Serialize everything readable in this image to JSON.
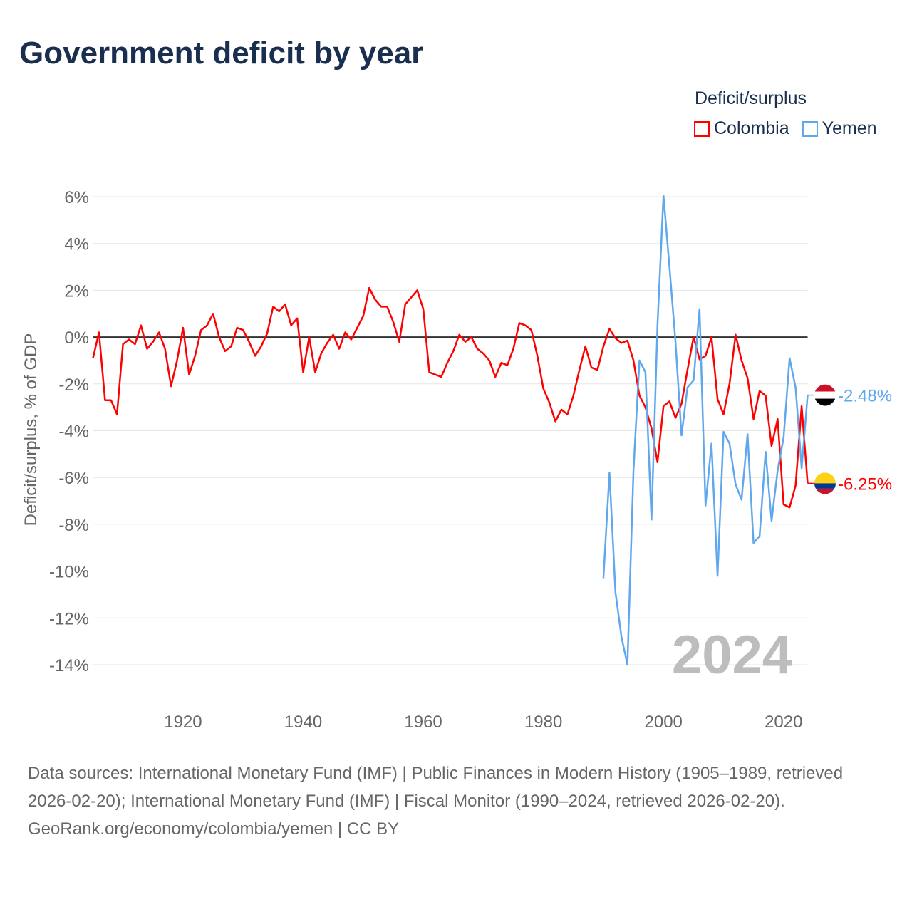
{
  "title": "Government deficit by year",
  "legend": {
    "title": "Deficit/surplus",
    "items": [
      "Colombia",
      "Yemen"
    ]
  },
  "colors": {
    "Colombia": "#ff0000",
    "Yemen": "#5fa8ee",
    "zero_line": "#333333",
    "grid": "#e6e6e6",
    "year_watermark": "#bdbdbd"
  },
  "source": {
    "line1": "Data sources: International Monetary Fund (IMF) | Public Finances in Modern History (1905–1989, retrieved 2026-02-20); International Monetary Fund (IMF) | Fiscal Monitor (1990–2024, retrieved 2026-02-20).",
    "line2": "GeoRank.org/economy/colombia/yemen | CC BY"
  },
  "chart_data": {
    "type": "line",
    "title": "Government deficit by year",
    "xlabel": "",
    "ylabel": "Deficit/surplus, % of GDP",
    "xlim": [
      1905,
      2024
    ],
    "ylim": [
      -14,
      6
    ],
    "x_ticks": [
      1920,
      1940,
      1960,
      1980,
      2000,
      2020
    ],
    "x_tick_labels": [
      "1920",
      "1940",
      "1960",
      "1980",
      "2000",
      "2020"
    ],
    "y_ticks": [
      6,
      4,
      2,
      0,
      -2,
      -4,
      -6,
      -8,
      -10,
      -12,
      -14
    ],
    "y_tick_labels": [
      "6%",
      "4%",
      "2%",
      "0%",
      "-2%",
      "-4%",
      "-6%",
      "-8%",
      "-10%",
      "-12%",
      "-14%"
    ],
    "year_label": "2024",
    "legend_position": "top-right",
    "series": [
      {
        "name": "Colombia",
        "start_year": 1905,
        "end_label": "-6.25%",
        "values": [
          -0.9,
          0.2,
          -2.7,
          -2.7,
          -3.3,
          -0.3,
          -0.1,
          -0.3,
          0.5,
          -0.5,
          -0.2,
          0.2,
          -0.5,
          -2.1,
          -1.0,
          0.4,
          -1.6,
          -0.8,
          0.3,
          0.5,
          1.0,
          0.0,
          -0.6,
          -0.4,
          0.4,
          0.3,
          -0.2,
          -0.8,
          -0.4,
          0.15,
          1.3,
          1.1,
          1.4,
          0.5,
          0.8,
          -1.5,
          0.0,
          -1.5,
          -0.7,
          -0.25,
          0.1,
          -0.5,
          0.2,
          -0.1,
          0.4,
          0.9,
          2.1,
          1.6,
          1.3,
          1.3,
          0.65,
          -0.2,
          1.4,
          1.7,
          2.0,
          1.2,
          -1.5,
          -1.6,
          -1.7,
          -1.1,
          -0.6,
          0.1,
          -0.2,
          0.0,
          -0.5,
          -0.7,
          -1.0,
          -1.7,
          -1.1,
          -1.2,
          -0.5,
          0.6,
          0.5,
          0.3,
          -0.8,
          -2.2,
          -2.8,
          -3.6,
          -3.1,
          -3.3,
          -2.5,
          -1.4,
          -0.4,
          -1.3,
          -1.4,
          -0.4,
          0.35,
          -0.05,
          -0.25,
          -0.15,
          -1.0,
          -2.5,
          -3.0,
          -3.9,
          -5.35,
          -2.95,
          -2.75,
          -3.45,
          -2.85,
          -1.4,
          0.0,
          -0.95,
          -0.8,
          0.0,
          -2.65,
          -3.3,
          -2.0,
          0.1,
          -1.0,
          -1.75,
          -3.5,
          -2.3,
          -2.5,
          -4.65,
          -3.5,
          -7.15,
          -7.28,
          -6.35,
          -2.95,
          -6.25
        ]
      },
      {
        "name": "Yemen",
        "start_year": 1990,
        "end_label": "-2.48%",
        "values": [
          -10.3,
          -5.8,
          -10.9,
          -12.8,
          -14.0,
          -5.7,
          -1.0,
          -1.5,
          -7.8,
          0.5,
          6.05,
          3.0,
          -0.2,
          -4.2,
          -2.15,
          -1.85,
          1.2,
          -7.2,
          -4.55,
          -10.2,
          -4.05,
          -4.55,
          -6.3,
          -6.95,
          -4.15,
          -8.8,
          -8.5,
          -4.9,
          -7.85,
          -5.7,
          -4.3,
          -0.9,
          -2.15,
          -5.6,
          -2.48
        ]
      }
    ]
  }
}
